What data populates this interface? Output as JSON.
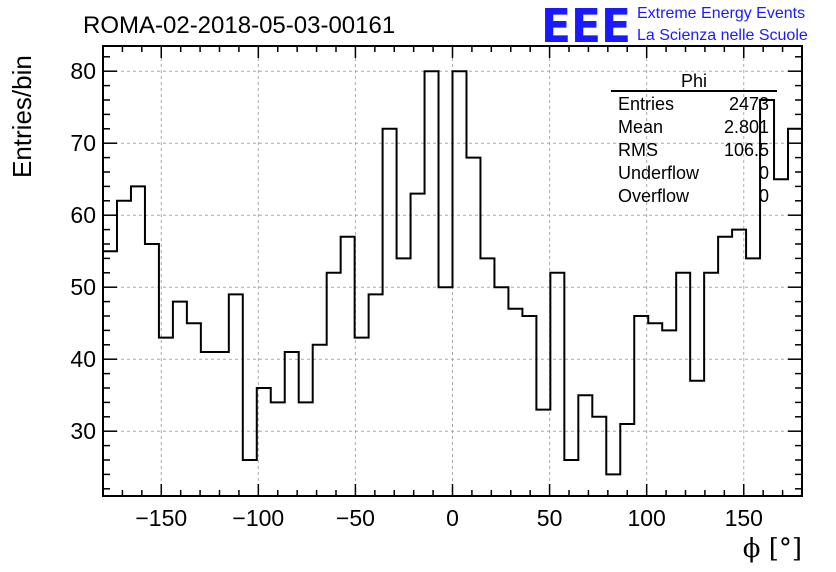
{
  "header": {
    "run_title": "ROMA-02-2018-05-03-00161",
    "logo_mark": "EEE",
    "logo_line1": "Extreme Energy Events",
    "logo_line2": "La Scienza nelle Scuole",
    "logo_color": "#1a1aff"
  },
  "stats_box": {
    "title": "Phi",
    "rows": [
      {
        "label": "Entries",
        "value": "2473"
      },
      {
        "label": "Mean",
        "value": "2.801"
      },
      {
        "label": "RMS",
        "value": "106.5"
      },
      {
        "label": "Underflow",
        "value": "0"
      },
      {
        "label": "Overflow",
        "value": "0"
      }
    ]
  },
  "chart_data": {
    "type": "bar",
    "style": "step-histogram",
    "xlabel": "ϕ [°]",
    "ylabel": "Entries/bin",
    "xlim": [
      -180,
      180
    ],
    "ylim": [
      21,
      83.5
    ],
    "bin_width": 7.2,
    "x_ticks": [
      -150,
      -100,
      -50,
      0,
      50,
      100,
      150
    ],
    "x_tick_labels": [
      "−150",
      "−100",
      "−50",
      "0",
      "50",
      "100",
      "150"
    ],
    "y_ticks": [
      30,
      40,
      50,
      60,
      70,
      80
    ],
    "y_tick_labels": [
      "30",
      "40",
      "50",
      "60",
      "70",
      "80"
    ],
    "grid": true,
    "line_color": "#000000",
    "bin_low_edges": [
      -180,
      -172.8,
      -165.6,
      -158.4,
      -151.2,
      -144,
      -136.8,
      -129.6,
      -122.4,
      -115.2,
      -108,
      -100.8,
      -93.6,
      -86.4,
      -79.2,
      -72,
      -64.8,
      -57.6,
      -50.4,
      -43.2,
      -36,
      -28.8,
      -21.6,
      -14.4,
      -7.2,
      0,
      7.2,
      14.4,
      21.6,
      28.8,
      36,
      43.2,
      50.4,
      57.6,
      64.8,
      72,
      79.2,
      86.4,
      93.6,
      100.8,
      108,
      115.2,
      122.4,
      129.6,
      136.8,
      144,
      151.2,
      158.4,
      165.6,
      172.8
    ],
    "values": [
      55,
      62,
      64,
      56,
      43,
      48,
      45,
      41,
      41,
      49,
      26,
      36,
      34,
      41,
      34,
      42,
      52,
      57,
      43,
      49,
      72,
      54,
      63,
      80,
      50,
      80,
      68,
      54,
      50,
      47,
      46,
      33,
      52,
      26,
      35,
      32,
      24,
      31,
      46,
      45,
      44,
      52,
      37,
      52,
      57,
      58,
      54,
      76,
      65,
      72
    ]
  }
}
